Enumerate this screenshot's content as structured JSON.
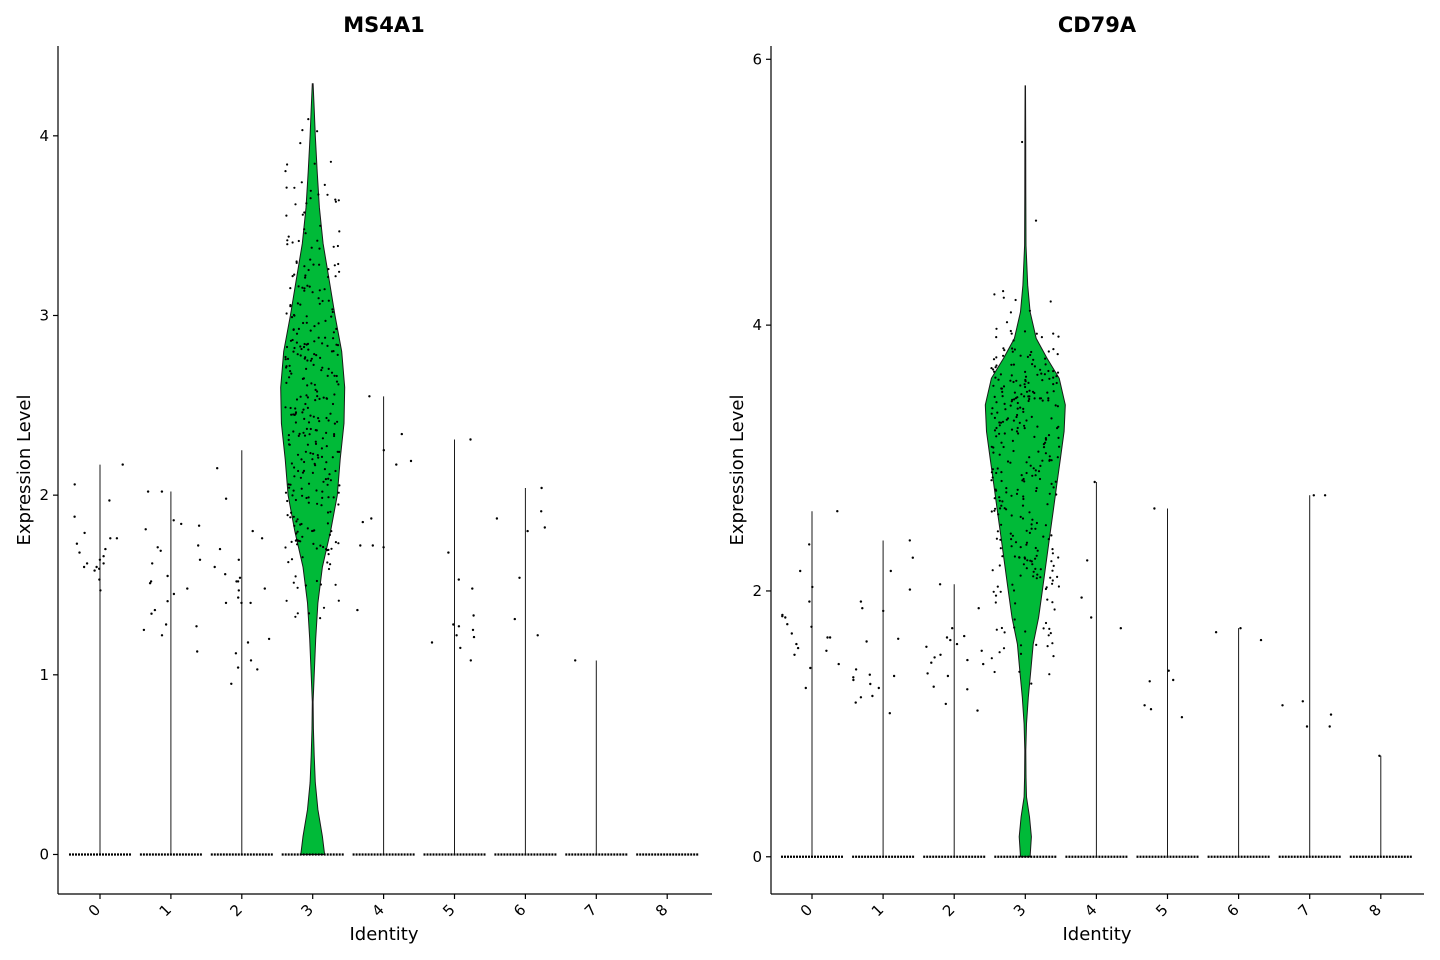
{
  "chart_data": [
    {
      "type": "violin",
      "title": "MS4A1",
      "xlabel": "Identity",
      "ylabel": "Expression Level",
      "categories": [
        "0",
        "1",
        "2",
        "3",
        "4",
        "5",
        "6",
        "7",
        "8"
      ],
      "ylim": [
        -0.22,
        4.5
      ],
      "yticks": [
        0,
        1,
        2,
        3,
        4
      ],
      "grid": false,
      "fill_color": "#00BA38",
      "highlight_category": "3",
      "max_values": [
        2.17,
        2.02,
        2.25,
        4.29,
        2.55,
        2.31,
        2.04,
        1.08,
        0.0
      ],
      "violin_3_density": [
        [
          0.0,
          0.16
        ],
        [
          0.1,
          0.13
        ],
        [
          0.25,
          0.07
        ],
        [
          0.4,
          0.035
        ],
        [
          0.55,
          0.02
        ],
        [
          0.7,
          0.01
        ],
        [
          0.85,
          0.006
        ],
        [
          1.0,
          0.02
        ],
        [
          1.2,
          0.04
        ],
        [
          1.4,
          0.07
        ],
        [
          1.6,
          0.13
        ],
        [
          1.8,
          0.24
        ],
        [
          2.0,
          0.33
        ],
        [
          2.2,
          0.37
        ],
        [
          2.4,
          0.42
        ],
        [
          2.6,
          0.43
        ],
        [
          2.8,
          0.39
        ],
        [
          3.0,
          0.3
        ],
        [
          3.2,
          0.22
        ],
        [
          3.4,
          0.14
        ],
        [
          3.6,
          0.09
        ],
        [
          3.8,
          0.06
        ],
        [
          4.0,
          0.035
        ],
        [
          4.15,
          0.02
        ],
        [
          4.29,
          0.005
        ]
      ],
      "nonzero_points": [
        [
          [
            1.53,
            1.66,
            1.73,
            1.79,
            1.6,
            1.47,
            2.06,
            2.17,
            1.7,
            1.58,
            1.62,
            1.76,
            1.97,
            1.88,
            1.64,
            1.6,
            1.76,
            1.68,
            1.62,
            1.59
          ]
        ],
        [
          [
            1.34,
            1.25,
            1.13,
            1.83,
            2.02,
            1.55,
            1.72,
            1.62,
            1.28,
            1.45,
            1.84,
            1.71,
            1.52,
            1.64,
            1.41,
            1.36,
            1.86,
            1.69,
            1.51,
            1.48,
            1.22,
            2.02,
            1.81,
            1.27
          ]
        ],
        [
          [
            1.98,
            1.48,
            1.54,
            1.4,
            1.18,
            1.12,
            1.03,
            1.08,
            1.7,
            1.56,
            1.64,
            2.15,
            1.6,
            1.52,
            1.8,
            1.4,
            1.2,
            0.95,
            1.52,
            1.4,
            1.04,
            1.76,
            1.47,
            1.43
          ]
        ],
        [],
        [
          [
            2.55,
            2.17,
            1.36,
            1.72,
            2.25,
            2.19,
            1.85,
            1.87,
            1.72,
            2.34,
            1.71
          ]
        ],
        [
          [
            1.53,
            1.28,
            1.22,
            1.18,
            1.15,
            1.33,
            1.68,
            1.27,
            2.31,
            1.25,
            1.21,
            1.48,
            1.08
          ]
        ],
        [
          [
            2.04,
            1.31,
            1.22,
            1.82,
            1.91,
            1.87,
            1.54,
            1.8
          ]
        ],
        [
          [
            1.08
          ]
        ],
        []
      ]
    },
    {
      "type": "violin",
      "title": "CD79A",
      "xlabel": "Identity",
      "ylabel": "Expression Level",
      "categories": [
        "0",
        "1",
        "2",
        "3",
        "4",
        "5",
        "6",
        "7",
        "8"
      ],
      "ylim": [
        -0.28,
        6.1
      ],
      "yticks": [
        0,
        2,
        4,
        6
      ],
      "grid": false,
      "fill_color": "#00BA38",
      "highlight_category": "3",
      "max_values": [
        2.6,
        2.38,
        2.05,
        5.8,
        2.82,
        2.62,
        1.72,
        2.72,
        0.76
      ],
      "violin_3_density": [
        [
          0.0,
          0.04
        ],
        [
          0.15,
          0.05
        ],
        [
          0.3,
          0.035
        ],
        [
          0.45,
          0.01
        ],
        [
          0.6,
          0.006
        ],
        [
          0.8,
          0.004
        ],
        [
          1.0,
          0.01
        ],
        [
          1.2,
          0.025
        ],
        [
          1.4,
          0.045
        ],
        [
          1.6,
          0.065
        ],
        [
          1.8,
          0.11
        ],
        [
          2.0,
          0.14
        ],
        [
          2.2,
          0.17
        ],
        [
          2.4,
          0.2
        ],
        [
          2.6,
          0.23
        ],
        [
          2.8,
          0.26
        ],
        [
          3.0,
          0.29
        ],
        [
          3.2,
          0.32
        ],
        [
          3.4,
          0.33
        ],
        [
          3.6,
          0.28
        ],
        [
          3.75,
          0.18
        ],
        [
          3.9,
          0.09
        ],
        [
          4.1,
          0.04
        ],
        [
          4.3,
          0.02
        ],
        [
          4.6,
          0.006
        ],
        [
          5.0,
          0.004
        ],
        [
          5.4,
          0.003
        ],
        [
          5.8,
          0.002
        ]
      ],
      "nonzero_points": [
        [
          [
            2.6,
            1.8,
            1.73,
            1.65,
            1.55,
            1.42,
            1.92,
            1.81,
            2.03,
            2.15,
            1.57,
            1.82,
            1.65,
            1.45,
            1.27,
            1.6,
            2.35,
            1.75,
            1.68,
            1.52
          ]
        ],
        [
          [
            1.85,
            2.38,
            2.15,
            1.41,
            1.35,
            1.2,
            1.87,
            1.64,
            1.92,
            1.62,
            1.08,
            1.16,
            1.36,
            2.25,
            1.3,
            2.01,
            1.21,
            1.37,
            1.27,
            1.33
          ]
        ],
        [
          [
            1.63,
            1.6,
            1.72,
            1.5,
            1.26,
            1.46,
            1.87,
            1.15,
            1.65,
            1.38,
            1.1,
            1.66,
            1.58,
            1.48,
            1.36,
            2.05,
            1.52,
            1.45,
            1.28,
            1.55
          ]
        ],
        [],
        [
          [
            2.82,
            2.23,
            1.8,
            1.72,
            1.95
          ]
        ],
        [
          [
            2.62,
            1.14,
            1.05,
            1.32,
            1.4,
            1.11,
            1.33
          ]
        ],
        [
          [
            1.72,
            1.69,
            1.63
          ]
        ],
        [
          [
            2.72,
            1.07,
            0.98,
            1.14,
            0.98,
            2.72,
            1.17
          ]
        ],
        [
          [
            0.76
          ]
        ]
      ]
    }
  ]
}
